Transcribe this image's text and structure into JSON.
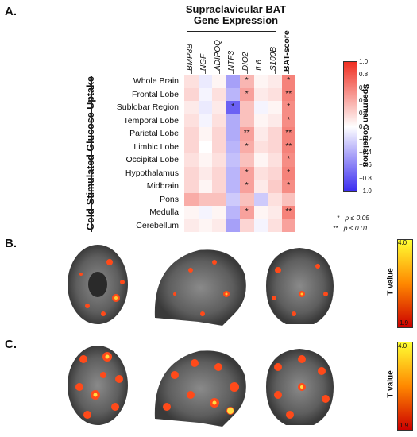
{
  "panels": {
    "a": "A.",
    "b": "B.",
    "c": "C."
  },
  "header": {
    "line1": "Supraclavicular BAT",
    "line2": "Gene Expression"
  },
  "y_axis_title": "Cold-Stimulated Glucose Uptake",
  "colorbar": {
    "title": "Spearman Correlation",
    "ticks": [
      "1.0",
      "0.8",
      "0.6",
      "0.4",
      "0.2",
      "0.0",
      "−0.2",
      "−0.4",
      "−0.6",
      "−0.8",
      "−1.0"
    ],
    "low_color": "#3a2cf0",
    "mid_color": "#ffffff",
    "high_color": "#ef2f22"
  },
  "significance_legend": [
    {
      "symbol": "*",
      "text": "p ≤ 0.05"
    },
    {
      "symbol": "**",
      "text": "p ≤ 0.01"
    }
  ],
  "tvalue": {
    "title": "T value",
    "b_max": "4.0",
    "b_min": "1.9",
    "c_max": "4.0",
    "c_min": "1.9"
  },
  "chart_data": {
    "type": "heatmap",
    "columns": [
      "BMP8B",
      "NGF",
      "ADIPOQ",
      "NTF3",
      "DIO2",
      "IL6",
      "S100B",
      "BAT-score"
    ],
    "rows": [
      "Whole Brain",
      "Frontal Lobe",
      "Sublobar Region",
      "Temporal Lobe",
      "Parietal Lobe",
      "Limbic Lobe",
      "Occipital Lobe",
      "Hypothalamus",
      "Midbrain",
      "Pons",
      "Medulla",
      "Cerebellum"
    ],
    "values": [
      [
        0.15,
        -0.1,
        0.05,
        -0.45,
        0.35,
        0.05,
        0.1,
        0.6
      ],
      [
        0.2,
        -0.05,
        0.15,
        -0.35,
        0.45,
        0.1,
        0.15,
        0.6
      ],
      [
        0.1,
        -0.1,
        0.1,
        -0.75,
        0.3,
        -0.05,
        0.05,
        0.55
      ],
      [
        0.15,
        -0.05,
        0.15,
        -0.4,
        0.3,
        0.05,
        0.1,
        0.55
      ],
      [
        0.2,
        0.05,
        0.2,
        -0.4,
        0.45,
        0.1,
        0.2,
        0.6
      ],
      [
        0.2,
        0.0,
        0.2,
        -0.35,
        0.4,
        0.15,
        0.2,
        0.6
      ],
      [
        0.15,
        0.05,
        0.15,
        -0.3,
        0.3,
        0.05,
        0.15,
        0.55
      ],
      [
        0.2,
        0.1,
        0.2,
        -0.35,
        0.45,
        0.15,
        0.2,
        0.6
      ],
      [
        0.2,
        0.05,
        0.2,
        -0.35,
        0.45,
        0.1,
        0.25,
        0.55
      ],
      [
        0.4,
        0.3,
        0.3,
        -0.25,
        0.3,
        -0.25,
        0.15,
        0.3
      ],
      [
        0.05,
        -0.05,
        0.05,
        -0.35,
        0.45,
        0.05,
        0.1,
        0.6
      ],
      [
        0.1,
        0.05,
        0.1,
        -0.45,
        0.2,
        -0.05,
        0.15,
        0.45
      ]
    ],
    "significance": [
      [
        "",
        "",
        "",
        "",
        "*",
        "",
        "",
        "*"
      ],
      [
        "",
        "",
        "",
        "",
        "*",
        "",
        "",
        "**"
      ],
      [
        "",
        "",
        "",
        "*",
        "",
        "",
        "",
        "*"
      ],
      [
        "",
        "",
        "",
        "",
        "",
        "",
        "",
        "*"
      ],
      [
        "",
        "",
        "",
        "",
        "**",
        "",
        "",
        "**"
      ],
      [
        "",
        "",
        "",
        "",
        "*",
        "",
        "",
        "**"
      ],
      [
        "",
        "",
        "",
        "",
        "",
        "",
        "",
        "*"
      ],
      [
        "",
        "",
        "",
        "",
        "*",
        "",
        "",
        "*"
      ],
      [
        "",
        "",
        "",
        "",
        "*",
        "",
        "",
        "*"
      ],
      [
        "",
        "",
        "",
        "",
        "",
        "",
        "",
        ""
      ],
      [
        "",
        "",
        "",
        "",
        "*",
        "",
        "",
        "**"
      ],
      [
        "",
        "",
        "",
        "",
        "",
        "",
        "",
        ""
      ]
    ],
    "color_range": [
      -1.0,
      1.0
    ]
  }
}
